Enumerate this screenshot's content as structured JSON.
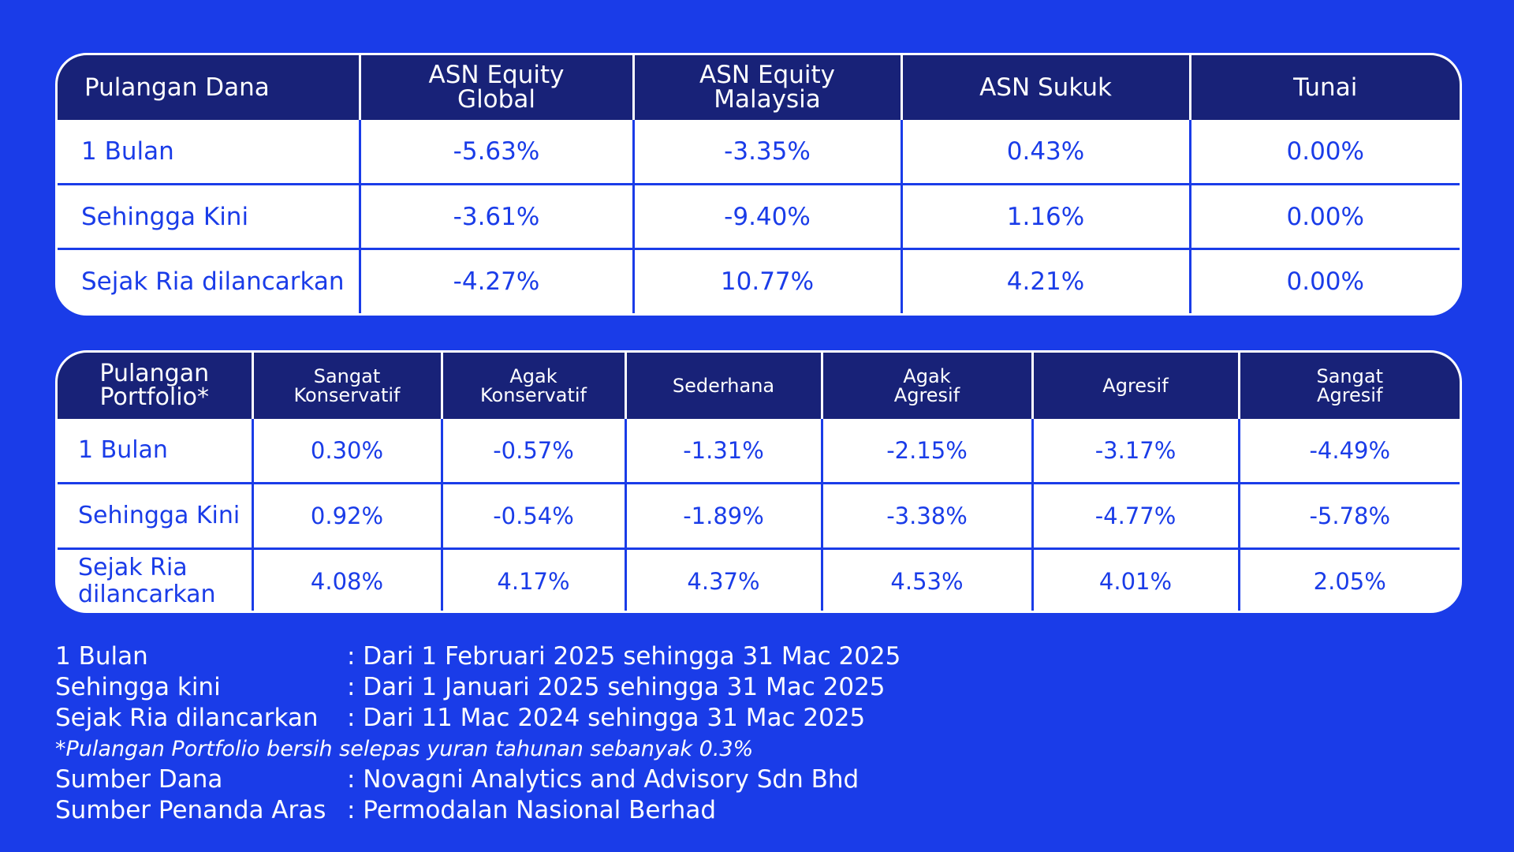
{
  "funds_table": {
    "headers": [
      "Pulangan Dana",
      "ASN Equity\nGlobal",
      "ASN Equity\nMalaysia",
      "ASN Sukuk",
      "Tunai"
    ],
    "rows": [
      {
        "label": "1 Bulan",
        "values": [
          "-5.63%",
          "-3.35%",
          "0.43%",
          "0.00%"
        ]
      },
      {
        "label": "Sehingga Kini",
        "values": [
          "-3.61%",
          "-9.40%",
          "1.16%",
          "0.00%"
        ]
      },
      {
        "label": "Sejak Ria dilancarkan",
        "values": [
          "-4.27%",
          "10.77%",
          "4.21%",
          "0.00%"
        ]
      }
    ]
  },
  "portfolio_table": {
    "headers": [
      "Pulangan\nPortfolio*",
      "Sangat\nKonservatif",
      "Agak\nKonservatif",
      "Sederhana",
      "Agak\nAgresif",
      "Agresif",
      "Sangat\nAgresif"
    ],
    "rows": [
      {
        "label": "1 Bulan",
        "values": [
          "0.30%",
          "-0.57%",
          "-1.31%",
          "-2.15%",
          "-3.17%",
          "-4.49%"
        ]
      },
      {
        "label": "Sehingga Kini",
        "values": [
          "0.92%",
          "-0.54%",
          "-1.89%",
          "-3.38%",
          "-4.77%",
          "-5.78%"
        ]
      },
      {
        "label": "Sejak Ria\ndilancarkan",
        "values": [
          "4.08%",
          "4.17%",
          "4.37%",
          "4.53%",
          "4.01%",
          "2.05%"
        ]
      }
    ]
  },
  "notes": {
    "period_1_label": "1 Bulan",
    "period_1_value": ": Dari 1 Februari 2025 sehingga 31 Mac 2025",
    "period_2_label": "Sehingga kini",
    "period_2_value": ": Dari 1 Januari 2025 sehingga 31 Mac 2025",
    "period_3_label": "Sejak Ria dilancarkan",
    "period_3_value": ": Dari 11 Mac 2024 sehingga 31 Mac 2025",
    "fee_note": "*Pulangan Portfolio bersih selepas yuran tahunan sebanyak 0.3%",
    "source_fund_label": "Sumber Dana",
    "source_fund_value": ": Novagni Analytics and Advisory Sdn Bhd",
    "source_benchmark_label": "Sumber Penanda Aras",
    "source_benchmark_value": ": Permodalan Nasional Berhad"
  },
  "colors": {
    "background": "#1a3ce8",
    "header": "#182278",
    "cell": "#ffffff",
    "text_accent": "#1a3ce8"
  }
}
